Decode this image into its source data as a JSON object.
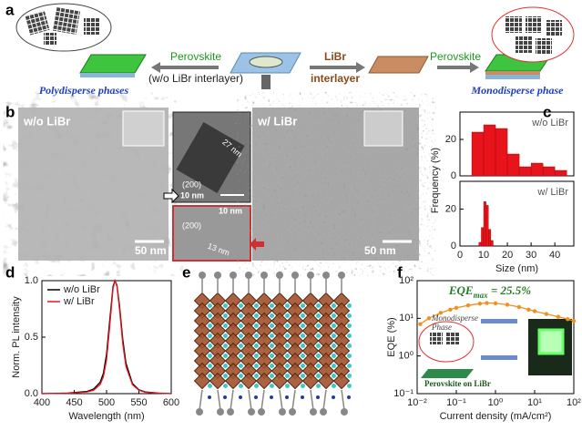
{
  "panel_labels": [
    "a",
    "b",
    "c",
    "d",
    "e",
    "f"
  ],
  "schematic": {
    "left_label": "Perovskite",
    "left_sublabel": "(w/o LiBr interlayer)",
    "left_phase": "Polydisperse phases",
    "middle_label": "LiBr",
    "middle_sublabel": "interlayer",
    "right_label": "Perovskite",
    "right_phase": "Monodisperse phase"
  },
  "tem": {
    "left_title": "w/o LiBr",
    "right_title": "w/ LiBr",
    "scale_bars": [
      "50 nm",
      "50 nm"
    ],
    "hrtem_top": {
      "size": "27 nm",
      "plane": "(200)",
      "scale": "10 nm"
    },
    "hrtem_bottom": {
      "scale": "10 nm",
      "plane": "(200)",
      "size": "13 nm"
    }
  },
  "chart_data": [
    {
      "type": "histogram",
      "name": "w/o LiBr",
      "color": "#e8141c",
      "bins": [
        5,
        10,
        15,
        20,
        25,
        30,
        35,
        40,
        45
      ],
      "values": [
        24,
        28,
        26,
        12,
        5,
        7,
        5,
        3
      ],
      "xlim": [
        0,
        48
      ],
      "ylim": [
        0,
        35
      ],
      "yticks": [
        0,
        20
      ],
      "y_label": "Frequency (%)"
    },
    {
      "type": "histogram",
      "name": "w/ LiBr",
      "color": "#e8141c",
      "bins": [
        8,
        9,
        10,
        11,
        12,
        13,
        14
      ],
      "values": [
        2,
        10,
        24,
        22,
        9,
        3
      ],
      "xlim": [
        0,
        48
      ],
      "xticks": [
        0,
        10,
        20,
        30,
        40
      ],
      "ylim": [
        0,
        35
      ],
      "yticks": [
        0,
        20
      ],
      "x_label": "Size (nm)"
    },
    {
      "type": "line",
      "x_label": "Wavelength (nm)",
      "y_label": "Norm. PL intensity",
      "legend": "upper left",
      "x": [
        400,
        440,
        470,
        480,
        490,
        495,
        500,
        505,
        510,
        513,
        516,
        520,
        525,
        530,
        540,
        550,
        560,
        580,
        600
      ],
      "series": [
        {
          "name": "w/o LiBr",
          "color": "#000000",
          "values": [
            0,
            0.005,
            0.02,
            0.04,
            0.1,
            0.18,
            0.35,
            0.65,
            0.95,
            1.0,
            0.96,
            0.78,
            0.48,
            0.27,
            0.09,
            0.035,
            0.015,
            0.005,
            0
          ]
        },
        {
          "name": "w/   LiBr",
          "color": "#e8141c",
          "values": [
            0,
            0.003,
            0.015,
            0.03,
            0.08,
            0.15,
            0.3,
            0.6,
            0.93,
            1.0,
            0.95,
            0.75,
            0.44,
            0.24,
            0.08,
            0.03,
            0.012,
            0.004,
            0
          ]
        }
      ],
      "xlim": [
        400,
        600
      ],
      "xticks": [
        400,
        450,
        500,
        550,
        600
      ],
      "ylim": [
        0,
        1
      ],
      "yticks": [
        {
          "value": 0,
          "label": "0.0"
        },
        {
          "value": 0.5,
          "label": "0.5"
        },
        {
          "value": 1,
          "label": "1.0"
        }
      ]
    },
    {
      "type": "line",
      "markers": true,
      "log_x": true,
      "log_y": true,
      "x_label": "Current density (mA/cm²)",
      "y_label": "EQE (%)",
      "annotation": {
        "text": "EQE",
        "subscript": "max",
        "rest": " = 25.5%"
      },
      "inset_labels": [
        "Monodisperse",
        "Phase",
        "Perovskite on LiBr"
      ],
      "x": [
        0.012,
        0.02,
        0.04,
        0.07,
        0.1,
        0.2,
        0.4,
        0.6,
        1,
        2,
        4,
        7,
        10,
        20,
        40,
        70,
        100
      ],
      "series": [
        {
          "color": "#f0901e",
          "values": [
            7,
            10,
            14,
            17,
            19,
            22,
            24.5,
            25.5,
            25,
            23,
            20,
            17,
            15.5,
            13,
            11,
            9.5,
            8.5
          ]
        }
      ],
      "xlim": [
        0.01,
        100
      ],
      "xticks": [
        {
          "value": 0.01,
          "label": "10⁻²"
        },
        {
          "value": 0.1,
          "label": "10⁻¹"
        },
        {
          "value": 1,
          "label": "10⁰"
        },
        {
          "value": 10,
          "label": "10¹"
        },
        {
          "value": 100,
          "label": "10²"
        }
      ],
      "ylim": [
        0.1,
        100
      ],
      "yticks": [
        {
          "value": 0.1,
          "label": "10⁻¹"
        },
        {
          "value": 1,
          "label": "10⁰"
        },
        {
          "value": 10,
          "label": "10¹"
        },
        {
          "value": 100,
          "label": "10²"
        }
      ]
    }
  ]
}
